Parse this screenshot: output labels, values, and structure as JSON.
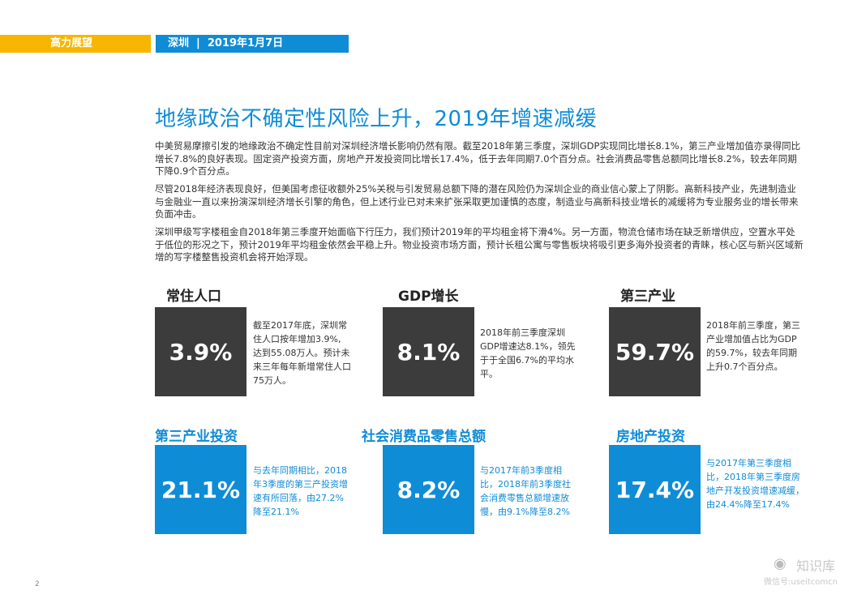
{
  "header": {
    "brand": "高力展望",
    "location_date": "深圳  |  2019年1月7日"
  },
  "title": "地缘政治不确定性风险上升，2019年增速减缓",
  "paragraphs": [
    "中美贸易摩擦引发的地缘政治不确定性目前对深圳经济增长影响仍然有限。截至2018年第三季度，深圳GDP实现同比增长8.1%，第三产业增加值亦录得同比增长7.8%的良好表现。固定资产投资方面，房地产开发投资同比增长17.4%，低于去年同期7.0个百分点。社会消费品零售总额同比增长8.2%，较去年同期下降0.9个百分点。",
    "尽管2018年经济表现良好，但美国考虑征收额外25%关税与引发贸易总额下降的潜在风险仍为深圳企业的商业信心蒙上了阴影。高新科技产业，先进制造业与金融业一直以来扮演深圳经济增长引擎的角色，但上述行业已对未来扩张采取更加谨慎的态度，制造业与高新科技业增长的减缓将为专业服务业的增长带来负面冲击。",
    "深圳甲级写字楼租金自2018年第三季度开始面临下行压力，我们预计2019年的平均租金将下滑4%。另一方面，物流仓储市场在缺乏新增供应，空置水平处于低位的形况之下，预计2019年平均租金依然会平稳上升。物业投资市场方面，预计长租公寓与零售板块将吸引更多海外投资者的青睐，核心区与新兴区域新增的写字楼整售投资机会将开始浮现。"
  ],
  "stats": [
    {
      "label": "常住人口",
      "value": "3.9%",
      "desc": "截至2017年底，深圳常住人口按年增加3.9%, 达到55.08万人。预计未来三年每年新增常住人口75万人。"
    },
    {
      "label": "GDP增长",
      "value": "8.1%",
      "desc": "2018年前三季度深圳GDP增速达8.1%，领先于于全国6.7%的平均水平。"
    },
    {
      "label": "第三产业",
      "value": "59.7%",
      "desc": "2018年前三季度，第三产业增加值占比为GDP的59.7%，较去年同期上升0.7个百分点。"
    },
    {
      "label": "第三产业投资",
      "value": "21.1%",
      "desc": "与去年同期相比，2018年3季度的第三产投资增速有所回落，由27.2%降至21.1%"
    },
    {
      "label": "社会消费品零售总额",
      "value": "8.2%",
      "desc": "与2017年前3季度相比，2018年前3季度社会消费零售总额增速放慢，由9.1%降至8.2%"
    },
    {
      "label": "房地产投资",
      "value": "17.4%",
      "desc": "与2017年第三季度相比，2018年第三季度房地产开发投资增速减缓，由24.4%降至17.4%"
    }
  ],
  "page_number": "2",
  "watermark": {
    "brand": "知识库",
    "sub": "微信号:useitcomcn"
  },
  "colors": {
    "accent_blue": "#0f8cd6",
    "accent_yellow": "#f7b500",
    "dark_box": "#3c3c3c"
  }
}
